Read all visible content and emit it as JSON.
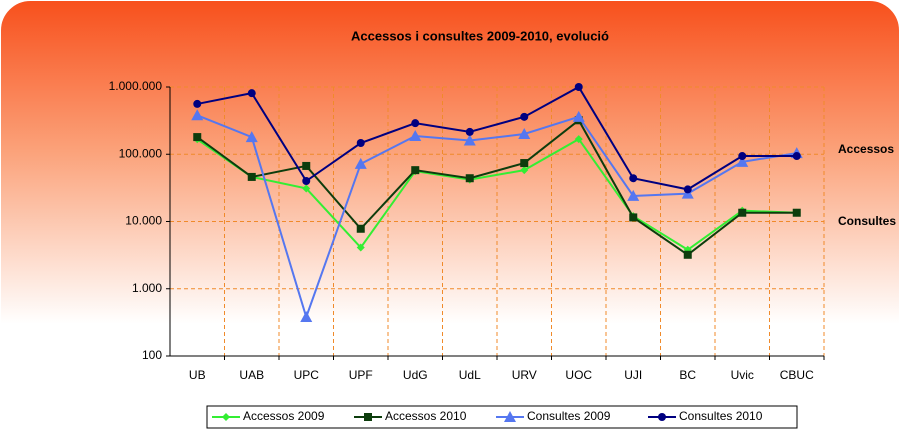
{
  "chart_data": {
    "type": "line",
    "title": "Accessos i consultes 2009-2010, evolució",
    "categories": [
      "UB",
      "UAB",
      "UPC",
      "UPF",
      "UdG",
      "UdL",
      "URV",
      "UOC",
      "UJI",
      "BC",
      "Uvic",
      "CBUC"
    ],
    "series": [
      {
        "name": "Accessos 2009",
        "color": "#33ee33",
        "marker": "diamond",
        "values": [
          167000,
          46000,
          31000,
          4100,
          56000,
          42000,
          58000,
          168000,
          12000,
          3800,
          14500,
          13500
        ]
      },
      {
        "name": "Accessos 2010",
        "color": "#0d3d0d",
        "marker": "square",
        "values": [
          180000,
          46000,
          67000,
          7800,
          58000,
          44000,
          74000,
          320000,
          11500,
          3200,
          13500,
          13500
        ]
      },
      {
        "name": "Consultes 2009",
        "color": "#5577f0",
        "marker": "triangle",
        "values": [
          380000,
          180000,
          380,
          72000,
          187000,
          160000,
          200000,
          360000,
          24000,
          26000,
          77000,
          104000
        ]
      },
      {
        "name": "Consultes 2010",
        "color": "#000080",
        "marker": "circle",
        "values": [
          560000,
          810000,
          40000,
          147000,
          290000,
          215000,
          360000,
          1000000,
          44000,
          30000,
          94000,
          94000
        ]
      }
    ],
    "ylim": [
      100,
      1000000
    ],
    "yticks": [
      100,
      {
        "value": 1000,
        "label": "1.000"
      },
      {
        "value": 10000,
        "label": "10.000"
      },
      {
        "value": 100000,
        "label": "100.000"
      },
      {
        "value": 1000000,
        "label": "1.000.000"
      }
    ],
    "log_scale": true,
    "grid": true,
    "grid_color": "#f08a2a",
    "legend": "bottom",
    "annotations": [
      "Accessos",
      "Consultes"
    ]
  }
}
